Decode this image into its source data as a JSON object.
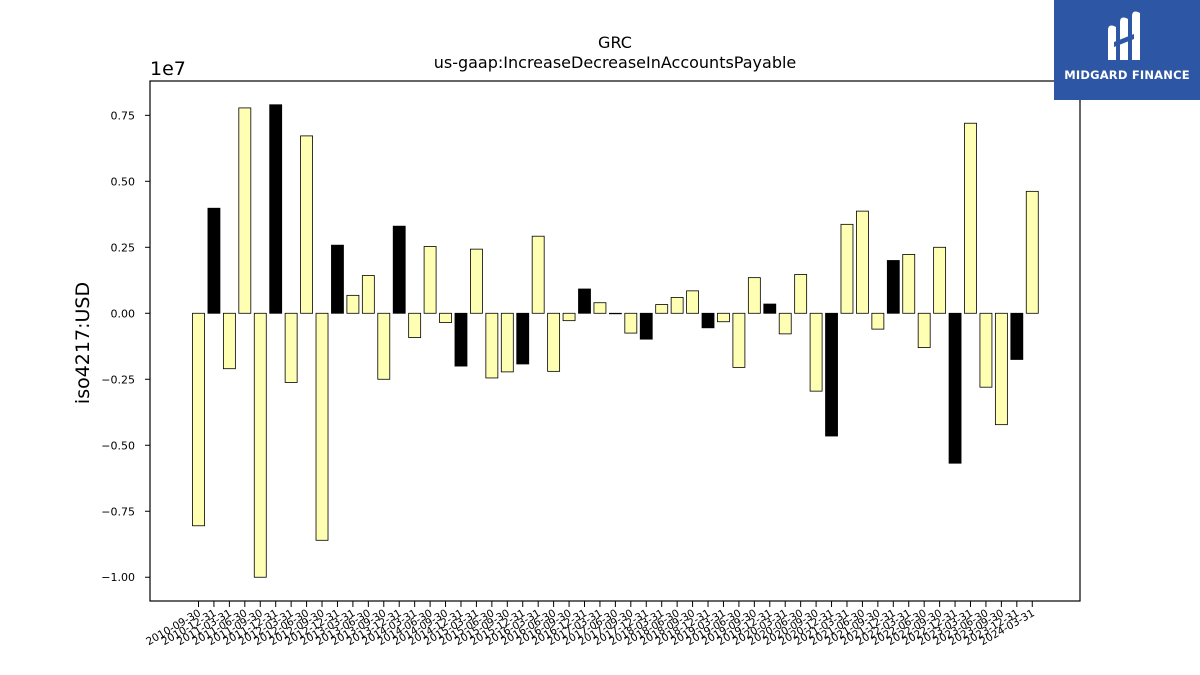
{
  "chart_data": {
    "type": "bar",
    "title": "GRC",
    "subtitle": "us-gaap:IncreaseDecreaseInAccountsPayable",
    "ylabel": "iso4217:USD",
    "xlabel": "",
    "y_scale_label": "1e7",
    "ylim": [
      -1.09,
      0.88
    ],
    "y_ticks": [
      -1.0,
      -0.75,
      -0.5,
      -0.25,
      0.0,
      0.25,
      0.5,
      0.75
    ],
    "y_tick_labels": [
      "−1.00",
      "−0.75",
      "−0.50",
      "−0.25",
      "0.00",
      "0.25",
      "0.50",
      "0.75"
    ],
    "grid": false,
    "categories": [
      "2010-09-30",
      "2010-12-31",
      "2011-03-31",
      "2011-06-30",
      "2011-09-30",
      "2011-12-31",
      "2012-03-31",
      "2012-06-30",
      "2012-09-30",
      "2012-12-31",
      "2013-03-31",
      "2013-06-30",
      "2013-09-30",
      "2013-12-31",
      "2014-03-31",
      "2014-06-30",
      "2014-09-30",
      "2014-12-31",
      "2015-03-31",
      "2015-06-30",
      "2015-09-30",
      "2015-12-31",
      "2016-03-31",
      "2016-06-30",
      "2016-09-30",
      "2016-12-31",
      "2017-03-31",
      "2017-06-30",
      "2017-09-30",
      "2017-12-31",
      "2018-03-31",
      "2018-06-30",
      "2018-09-30",
      "2018-12-31",
      "2019-03-31",
      "2019-06-30",
      "2019-09-30",
      "2019-12-31",
      "2020-03-31",
      "2020-06-30",
      "2020-09-30",
      "2020-12-31",
      "2021-03-31",
      "2021-06-30",
      "2021-09-30",
      "2021-12-31",
      "2022-03-31",
      "2022-06-30",
      "2022-09-30",
      "2022-12-31",
      "2023-03-31",
      "2023-06-30",
      "2023-09-30",
      "2023-12-31",
      "2024-03-31"
    ],
    "values": [
      -0.805,
      0.398,
      -0.21,
      0.778,
      -1.0,
      0.79,
      -0.262,
      0.672,
      -0.86,
      0.258,
      0.068,
      0.143,
      -0.25,
      0.33,
      -0.092,
      0.253,
      -0.035,
      -0.2,
      0.243,
      -0.245,
      -0.222,
      -0.192,
      0.292,
      -0.22,
      -0.028,
      0.092,
      0.04,
      0.0,
      -0.075,
      -0.098,
      0.033,
      0.06,
      0.085,
      -0.055,
      -0.032,
      -0.205,
      0.135,
      0.035,
      -0.078,
      0.147,
      -0.295,
      -0.465,
      0.337,
      0.387,
      -0.06,
      0.2,
      0.223,
      -0.13,
      0.25,
      -0.568,
      0.72,
      -0.28,
      -0.422,
      -0.175,
      0.462
    ],
    "highlight_indices": [
      1,
      5,
      9,
      13,
      17,
      21,
      25,
      29,
      33,
      37,
      41,
      45,
      49,
      53
    ],
    "colors": {
      "bar_fill": "#ffffb3",
      "bar_highlight": "#000000",
      "bar_edge": "#000000",
      "axes": "#000000"
    }
  },
  "logo": {
    "text": "MIDGARD FINANCE",
    "background": "#2d56a4",
    "foreground": "#ffffff"
  }
}
